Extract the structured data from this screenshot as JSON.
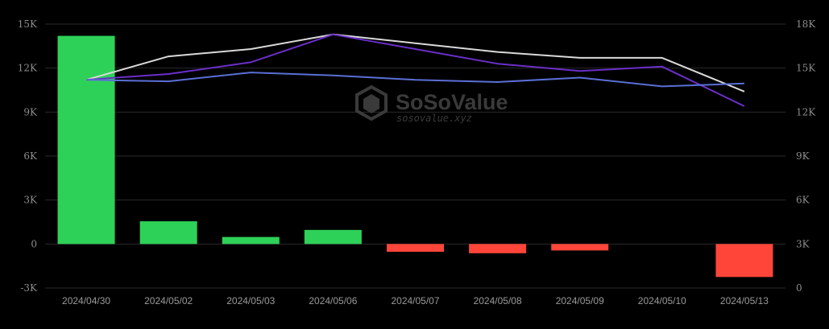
{
  "chart_data": {
    "type": "bar",
    "categories": [
      "2024/04/30",
      "2024/05/02",
      "2024/05/03",
      "2024/05/06",
      "2024/05/07",
      "2024/05/08",
      "2024/05/09",
      "2024/05/10",
      "2024/05/13"
    ],
    "bars": {
      "values": [
        14200,
        1550,
        480,
        960,
        -530,
        -630,
        -440,
        0,
        -2250
      ],
      "positive_color": "#2ed158",
      "negative_color": "#ff453a"
    },
    "left_axis": {
      "ylim": [
        -3000,
        15000
      ],
      "ticks": [
        -3000,
        0,
        3000,
        6000,
        9000,
        12000,
        15000
      ],
      "tick_labels": [
        "-3K",
        "0",
        "3K",
        "6K",
        "9K",
        "12K",
        "15K"
      ]
    },
    "right_axis": {
      "ylim": [
        0,
        18000
      ],
      "ticks": [
        0,
        3000,
        6000,
        9000,
        12000,
        15000,
        18000
      ],
      "tick_labels": [
        "0",
        "3K",
        "6K",
        "9K",
        "12K",
        "15K",
        "18K"
      ]
    },
    "series": [
      {
        "color": "#d9d9d9",
        "axis": "right",
        "values": [
          14200,
          15800,
          16300,
          17300,
          16700,
          16100,
          15700,
          15700,
          13400
        ]
      },
      {
        "color": "#6a2fc9",
        "axis": "right",
        "values": [
          14200,
          14600,
          15400,
          17300,
          16300,
          15300,
          14800,
          15100,
          12400
        ]
      },
      {
        "color": "#5b6fd6",
        "axis": "right",
        "values": [
          14200,
          14100,
          14700,
          14500,
          14200,
          14050,
          14350,
          13750,
          13950
        ]
      }
    ],
    "grid": true
  },
  "watermark": {
    "title": "SoSoValue",
    "subtitle": "sosovalue.xyz"
  }
}
